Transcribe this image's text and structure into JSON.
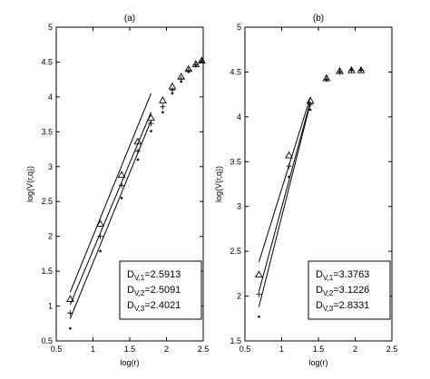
{
  "chart_data": [
    {
      "type": "scatter",
      "title": "(a)",
      "xlabel": "log(r)",
      "ylabel": "log(V(r,q))",
      "xlim": [
        0.5,
        2.5
      ],
      "ylim": [
        0.5,
        5
      ],
      "xticks": [
        "0.5",
        "1",
        "1.5",
        "2",
        "2.5"
      ],
      "yticks": [
        "0.5",
        "1",
        "1.5",
        "2",
        "2.5",
        "3",
        "3.5",
        "4",
        "4.5",
        "5"
      ],
      "x": [
        0.69,
        1.1,
        1.39,
        1.61,
        1.79,
        1.95,
        2.08,
        2.2,
        2.3,
        2.4,
        2.48
      ],
      "series": [
        {
          "marker": "triangle",
          "values": [
            1.1,
            2.18,
            2.88,
            3.36,
            3.7,
            3.95,
            4.15,
            4.29,
            4.4,
            4.47,
            4.52
          ]
        },
        {
          "marker": "plus",
          "values": [
            0.9,
            2.0,
            2.73,
            3.22,
            3.62,
            3.86,
            4.1,
            4.26,
            4.38,
            4.46,
            4.52
          ]
        },
        {
          "marker": "dot",
          "values": [
            0.68,
            1.79,
            2.55,
            3.1,
            3.51,
            3.78,
            4.05,
            4.22,
            4.36,
            4.44,
            4.5
          ]
        }
      ],
      "fits": [
        {
          "x": [
            0.69,
            1.79
          ],
          "y": [
            1.2,
            4.05
          ]
        },
        {
          "x": [
            0.69,
            1.79
          ],
          "y": [
            1.02,
            3.78
          ]
        },
        {
          "x": [
            0.69,
            1.79
          ],
          "y": [
            0.82,
            3.66
          ]
        }
      ],
      "legend": {
        "placement": "lower-right",
        "entries": [
          {
            "sub": "V,1",
            "value": "=2.5913"
          },
          {
            "sub": "V,2",
            "value": "=2.5091"
          },
          {
            "sub": "V,3",
            "value": "=2.4021"
          }
        ]
      }
    },
    {
      "type": "scatter",
      "title": "(b)",
      "xlabel": "log(r)",
      "ylabel": "log(V(r,q))",
      "xlim": [
        0.5,
        2.5
      ],
      "ylim": [
        1.5,
        5
      ],
      "xticks": [
        "0.5",
        "1",
        "1.5",
        "2",
        "2.5"
      ],
      "yticks": [
        "1.5",
        "2",
        "2.5",
        "3",
        "3.5",
        "4",
        "4.5",
        "5"
      ],
      "x": [
        0.69,
        1.1,
        1.39,
        1.61,
        1.79,
        1.95,
        2.08
      ],
      "series": [
        {
          "marker": "triangle",
          "values": [
            2.24,
            3.57,
            4.18,
            4.43,
            4.51,
            4.52,
            4.52
          ]
        },
        {
          "marker": "plus",
          "values": [
            2.02,
            3.45,
            4.14,
            4.42,
            4.5,
            4.52,
            4.52
          ]
        },
        {
          "marker": "dot",
          "values": [
            1.77,
            3.33,
            4.08,
            4.41,
            4.5,
            4.52,
            4.52
          ]
        }
      ],
      "fits": [
        {
          "x": [
            0.69,
            1.39
          ],
          "y": [
            2.38,
            4.22
          ]
        },
        {
          "x": [
            0.69,
            1.39
          ],
          "y": [
            2.05,
            4.17
          ]
        },
        {
          "x": [
            0.69,
            1.39
          ],
          "y": [
            1.88,
            4.15
          ]
        }
      ],
      "legend": {
        "placement": "lower-right",
        "entries": [
          {
            "sub": "V,1",
            "value": "=3.3763"
          },
          {
            "sub": "V,2",
            "value": "=3.1226"
          },
          {
            "sub": "V,3",
            "value": "=2.8331"
          }
        ]
      }
    }
  ]
}
